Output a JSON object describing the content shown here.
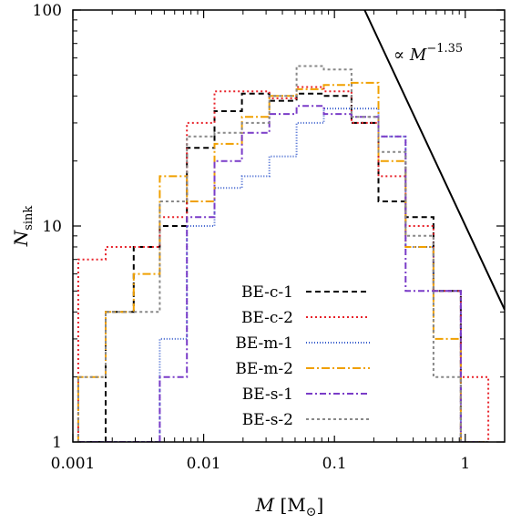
{
  "chart_data": {
    "type": "line",
    "subtype": "step-histogram",
    "x_scale": "log",
    "y_scale": "log",
    "xlim": [
      0.001,
      2
    ],
    "ylim": [
      1,
      100
    ],
    "x_ticks": [
      0.001,
      0.01,
      0.1,
      1
    ],
    "x_tick_labels": [
      "0.001",
      "0.01",
      "0.1",
      "1"
    ],
    "y_ticks": [
      1,
      10,
      100
    ],
    "y_tick_labels": [
      "1",
      "10",
      "100"
    ],
    "xlabel": {
      "main": "M",
      "unit_open": "[M",
      "unit_sub": "⊙",
      "unit_close": "]"
    },
    "ylabel": {
      "main": "N",
      "sub": "sink"
    },
    "legend_position": "bottom-center",
    "grid": false,
    "bin_edges": [
      0.0011,
      0.00178,
      0.00292,
      0.00462,
      0.00745,
      0.0121,
      0.0196,
      0.0318,
      0.0513,
      0.0829,
      0.135,
      0.217,
      0.35,
      0.572,
      0.925,
      1.5
    ],
    "series": [
      {
        "name": "BE-c-1",
        "color": "#000000",
        "dash": "6,4",
        "values": [
          1,
          4,
          8,
          10,
          23,
          34,
          41,
          38,
          41,
          40,
          30,
          13,
          11,
          5,
          1
        ]
      },
      {
        "name": "BE-c-2",
        "color": "#e8222a",
        "dash": "2,3",
        "values": [
          7,
          8,
          8,
          11,
          30,
          42,
          42,
          39,
          44,
          42,
          30,
          17,
          10,
          5,
          2
        ]
      },
      {
        "name": "BE-m-1",
        "color": "#3a5fcd",
        "dash": "1,2",
        "values": [
          1,
          1,
          1,
          3,
          10,
          15,
          17,
          21,
          30,
          35,
          35,
          26,
          8,
          5,
          1
        ]
      },
      {
        "name": "BE-m-2",
        "color": "#f0a000",
        "dash": "9,3,2,3",
        "values": [
          2,
          4,
          6,
          17,
          13,
          24,
          32,
          40,
          43,
          45,
          46,
          20,
          8,
          3,
          1
        ]
      },
      {
        "name": "BE-s-1",
        "color": "#7a3cc8",
        "dash": "7,3,2,3",
        "values": [
          1,
          1,
          1,
          2,
          11,
          20,
          27,
          33,
          36,
          33,
          32,
          26,
          5,
          5,
          1
        ]
      },
      {
        "name": "BE-s-2",
        "color": "#888888",
        "dash": "3,3",
        "values": [
          2,
          4,
          4,
          13,
          26,
          27,
          30,
          40,
          55,
          53,
          32,
          22,
          9,
          2,
          1
        ]
      }
    ],
    "annotations": [
      {
        "text_prefix": "∝ ",
        "text_base": "M",
        "text_exp": "−1.35",
        "type": "power-law-line",
        "slope": -1.35,
        "x_range": [
          0.17,
          2
        ],
        "y_range": [
          100,
          4.1
        ]
      }
    ]
  }
}
